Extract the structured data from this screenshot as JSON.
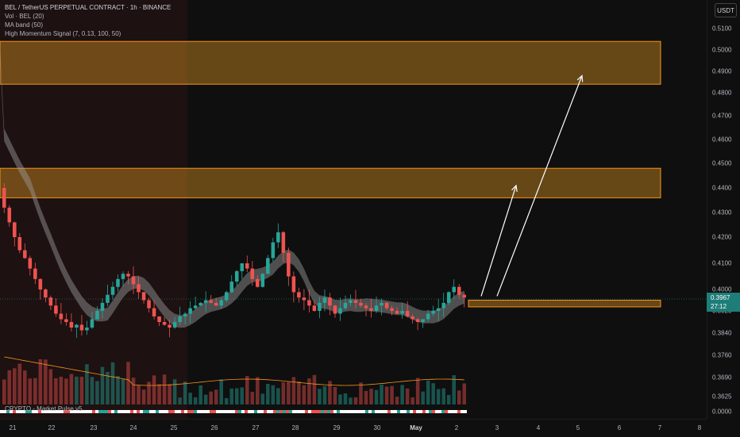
{
  "header": {
    "title": "BEL / TetherUS PERPETUAL CONTRACT · 1h · BINANCE",
    "indicators": [
      "Vol · BEL (20)",
      "MA band (50)",
      "High Momentum Signal (7, 0.13, 100, 50)"
    ]
  },
  "bottom_indicator_label": "CRYPTO - Market Pulse v5",
  "currency": "USDT",
  "last_price": "0.3967",
  "countdown": "27:12",
  "price_ticks": [
    "0.5100",
    "0.5000",
    "0.4900",
    "0.4800",
    "0.4700",
    "0.4600",
    "0.4500",
    "0.4400",
    "0.4300",
    "0.4200",
    "0.4100",
    "0.4000",
    "0.3920",
    "0.3840",
    "0.3760",
    "0.3690",
    "0.3625",
    "0.0000"
  ],
  "time_ticks": [
    "21",
    "22",
    "23",
    "24",
    "25",
    "26",
    "27",
    "28",
    "29",
    "30",
    "May",
    "2",
    "3",
    "4",
    "5",
    "6",
    "7",
    "8"
  ],
  "colors": {
    "up": "#26a69a",
    "down": "#ef5350",
    "zone_fill": "#f5a524",
    "zone_border": "#f7931a",
    "ma_band": "#9e9e9e",
    "vol_ma": "#f7931a",
    "arrow": "#ffffff"
  },
  "chart_data": {
    "type": "candlestick",
    "title": "BEL / TetherUS PERPETUAL CONTRACT · 1h · BINANCE",
    "x_range": [
      "21",
      "8"
    ],
    "y_range": [
      0.362,
      0.512
    ],
    "close_series": [
      0.432,
      0.426,
      0.42,
      0.415,
      0.412,
      0.408,
      0.404,
      0.4,
      0.397,
      0.394,
      0.391,
      0.389,
      0.388,
      0.386,
      0.387,
      0.385,
      0.386,
      0.389,
      0.392,
      0.395,
      0.398,
      0.401,
      0.404,
      0.406,
      0.405,
      0.402,
      0.399,
      0.396,
      0.393,
      0.39,
      0.388,
      0.387,
      0.386,
      0.388,
      0.39,
      0.391,
      0.393,
      0.394,
      0.395,
      0.396,
      0.395,
      0.394,
      0.396,
      0.399,
      0.403,
      0.407,
      0.41,
      0.408,
      0.404,
      0.401,
      0.406,
      0.412,
      0.418,
      0.422,
      0.414,
      0.405,
      0.399,
      0.397,
      0.396,
      0.394,
      0.392,
      0.395,
      0.397,
      0.394,
      0.391,
      0.393,
      0.395,
      0.396,
      0.395,
      0.394,
      0.393,
      0.392,
      0.394,
      0.395,
      0.393,
      0.392,
      0.391,
      0.392,
      0.39,
      0.389,
      0.388,
      0.389,
      0.391,
      0.392,
      0.393,
      0.395,
      0.399,
      0.401,
      0.398,
      0.397
    ],
    "zones": [
      {
        "low": 0.484,
        "high": 0.504
      },
      {
        "low": 0.436,
        "high": 0.448
      },
      {
        "low": 0.3935,
        "high": 0.396
      }
    ],
    "last_price": 0.3967,
    "arrows": [
      {
        "from": 0.3975,
        "to": 0.441
      },
      {
        "from": 0.3975,
        "to": 0.488
      }
    ]
  }
}
